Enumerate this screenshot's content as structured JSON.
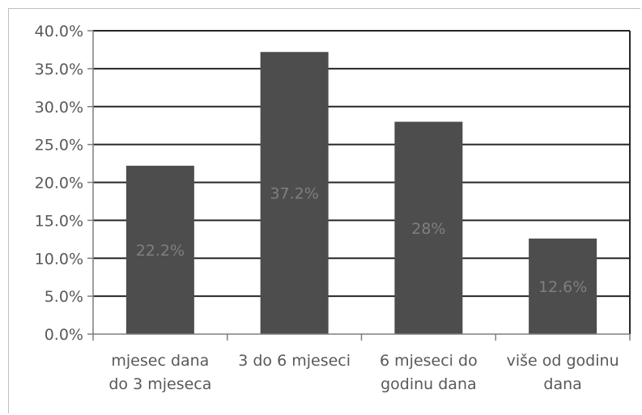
{
  "chart_data": {
    "type": "bar",
    "categories": [
      [
        "mjesec dana",
        "do 3 mjeseca"
      ],
      [
        "3 do 6 mjeseci"
      ],
      [
        "6 mjeseci do",
        "godinu dana"
      ],
      [
        "više od godinu",
        "dana"
      ]
    ],
    "values": [
      22.2,
      37.2,
      28.0,
      12.6
    ],
    "data_labels": [
      "22.2%",
      "37.2%",
      "28%",
      "12.6%"
    ],
    "title": "",
    "xlabel": "",
    "ylabel": "",
    "ylim": [
      0,
      40
    ],
    "yticks": [
      "0.0%",
      "5.0%",
      "10.0%",
      "15.0%",
      "20.0%",
      "25.0%",
      "30.0%",
      "35.0%",
      "40.0%"
    ],
    "grid": true,
    "legend": "none",
    "colors": {
      "bar": "#4d4d4d",
      "grid": "#262626",
      "axis": "#7f7f7f"
    }
  }
}
